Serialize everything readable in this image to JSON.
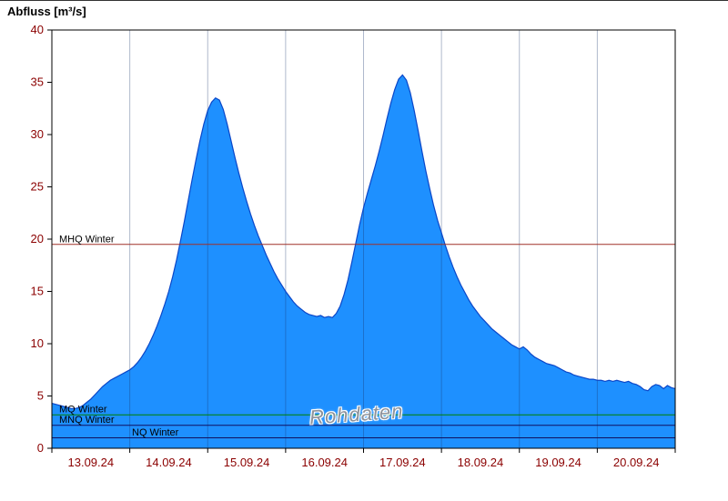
{
  "page": {
    "title": "Abfluss [m³/s]"
  },
  "watermark": "Rohdaten",
  "chart_data": {
    "type": "area",
    "title": "Abfluss [m³/s]",
    "ylabel": "Abfluss [m³/s]",
    "xlabel": "",
    "ylim": [
      0,
      40
    ],
    "ytick_step": 5,
    "xlim": [
      0,
      8
    ],
    "x_unit": "days from 13.09.24 00:00",
    "x_tick_labels": [
      "13.09.24",
      "14.09.24",
      "15.09.24",
      "16.09.24",
      "17.09.24",
      "18.09.24",
      "19.09.24",
      "20.09.24"
    ],
    "grid": "vertical-daily",
    "legend": "none",
    "reference_lines": [
      {
        "label": "MHQ Winter",
        "value": 19.5,
        "color": "#a03028"
      },
      {
        "label": "MQ Winter",
        "value": 3.2,
        "color": "#008000"
      },
      {
        "label": "MNQ Winter",
        "value": 2.2,
        "color": "#101060"
      },
      {
        "label": "NQ Winter",
        "value": 1.0,
        "color": "#101060"
      }
    ],
    "colors": {
      "fill": "#1e90ff",
      "line": "#0a46c8",
      "grid": "rgba(25,55,110,0.35)",
      "axis": "#000000",
      "tick_label": "#8b0000"
    },
    "series": [
      {
        "name": "Rohdaten",
        "points": [
          [
            0.0,
            4.3
          ],
          [
            0.05,
            4.2
          ],
          [
            0.1,
            4.1
          ],
          [
            0.15,
            4.0
          ],
          [
            0.2,
            3.9
          ],
          [
            0.25,
            3.8
          ],
          [
            0.3,
            3.8
          ],
          [
            0.35,
            3.9
          ],
          [
            0.4,
            4.1
          ],
          [
            0.45,
            4.4
          ],
          [
            0.5,
            4.7
          ],
          [
            0.55,
            5.1
          ],
          [
            0.6,
            5.5
          ],
          [
            0.65,
            5.9
          ],
          [
            0.7,
            6.2
          ],
          [
            0.75,
            6.5
          ],
          [
            0.8,
            6.7
          ],
          [
            0.85,
            6.9
          ],
          [
            0.9,
            7.1
          ],
          [
            0.95,
            7.3
          ],
          [
            1.0,
            7.5
          ],
          [
            1.05,
            7.8
          ],
          [
            1.1,
            8.2
          ],
          [
            1.15,
            8.7
          ],
          [
            1.2,
            9.3
          ],
          [
            1.25,
            10.0
          ],
          [
            1.3,
            10.8
          ],
          [
            1.35,
            11.7
          ],
          [
            1.4,
            12.7
          ],
          [
            1.45,
            13.8
          ],
          [
            1.5,
            15.0
          ],
          [
            1.55,
            16.4
          ],
          [
            1.6,
            18.0
          ],
          [
            1.65,
            19.8
          ],
          [
            1.7,
            21.7
          ],
          [
            1.75,
            23.7
          ],
          [
            1.8,
            25.7
          ],
          [
            1.85,
            27.6
          ],
          [
            1.9,
            29.4
          ],
          [
            1.95,
            31.0
          ],
          [
            2.0,
            32.3
          ],
          [
            2.05,
            33.1
          ],
          [
            2.1,
            33.5
          ],
          [
            2.15,
            33.3
          ],
          [
            2.2,
            32.4
          ],
          [
            2.25,
            31.0
          ],
          [
            2.3,
            29.4
          ],
          [
            2.35,
            27.8
          ],
          [
            2.4,
            26.3
          ],
          [
            2.45,
            24.9
          ],
          [
            2.5,
            23.6
          ],
          [
            2.55,
            22.4
          ],
          [
            2.6,
            21.3
          ],
          [
            2.65,
            20.3
          ],
          [
            2.7,
            19.4
          ],
          [
            2.75,
            18.5
          ],
          [
            2.8,
            17.7
          ],
          [
            2.85,
            16.9
          ],
          [
            2.9,
            16.2
          ],
          [
            2.95,
            15.6
          ],
          [
            3.0,
            15.0
          ],
          [
            3.05,
            14.5
          ],
          [
            3.1,
            14.0
          ],
          [
            3.15,
            13.6
          ],
          [
            3.2,
            13.3
          ],
          [
            3.25,
            13.0
          ],
          [
            3.3,
            12.8
          ],
          [
            3.35,
            12.7
          ],
          [
            3.4,
            12.6
          ],
          [
            3.45,
            12.7
          ],
          [
            3.5,
            12.5
          ],
          [
            3.55,
            12.6
          ],
          [
            3.6,
            12.5
          ],
          [
            3.65,
            12.9
          ],
          [
            3.7,
            13.6
          ],
          [
            3.75,
            14.7
          ],
          [
            3.8,
            16.1
          ],
          [
            3.85,
            17.8
          ],
          [
            3.9,
            19.6
          ],
          [
            3.95,
            21.4
          ],
          [
            4.0,
            23.0
          ],
          [
            4.05,
            24.4
          ],
          [
            4.1,
            25.7
          ],
          [
            4.15,
            27.0
          ],
          [
            4.2,
            28.4
          ],
          [
            4.25,
            29.9
          ],
          [
            4.3,
            31.5
          ],
          [
            4.35,
            33.0
          ],
          [
            4.4,
            34.3
          ],
          [
            4.45,
            35.3
          ],
          [
            4.5,
            35.7
          ],
          [
            4.55,
            35.2
          ],
          [
            4.6,
            34.0
          ],
          [
            4.65,
            32.3
          ],
          [
            4.7,
            30.4
          ],
          [
            4.75,
            28.4
          ],
          [
            4.8,
            26.5
          ],
          [
            4.85,
            24.8
          ],
          [
            4.9,
            23.2
          ],
          [
            4.95,
            21.8
          ],
          [
            5.0,
            20.6
          ],
          [
            5.05,
            19.4
          ],
          [
            5.1,
            18.3
          ],
          [
            5.15,
            17.3
          ],
          [
            5.2,
            16.4
          ],
          [
            5.25,
            15.6
          ],
          [
            5.3,
            14.9
          ],
          [
            5.35,
            14.2
          ],
          [
            5.4,
            13.6
          ],
          [
            5.45,
            13.1
          ],
          [
            5.5,
            12.6
          ],
          [
            5.55,
            12.2
          ],
          [
            5.6,
            11.8
          ],
          [
            5.65,
            11.4
          ],
          [
            5.7,
            11.1
          ],
          [
            5.75,
            10.8
          ],
          [
            5.8,
            10.5
          ],
          [
            5.85,
            10.2
          ],
          [
            5.9,
            9.9
          ],
          [
            5.95,
            9.7
          ],
          [
            6.0,
            9.5
          ],
          [
            6.05,
            9.7
          ],
          [
            6.1,
            9.4
          ],
          [
            6.15,
            9.0
          ],
          [
            6.2,
            8.7
          ],
          [
            6.25,
            8.5
          ],
          [
            6.3,
            8.3
          ],
          [
            6.35,
            8.1
          ],
          [
            6.4,
            8.0
          ],
          [
            6.45,
            7.9
          ],
          [
            6.5,
            7.7
          ],
          [
            6.55,
            7.5
          ],
          [
            6.6,
            7.3
          ],
          [
            6.65,
            7.2
          ],
          [
            6.7,
            7.0
          ],
          [
            6.75,
            6.9
          ],
          [
            6.8,
            6.8
          ],
          [
            6.85,
            6.7
          ],
          [
            6.9,
            6.6
          ],
          [
            6.95,
            6.6
          ],
          [
            7.0,
            6.5
          ],
          [
            7.05,
            6.5
          ],
          [
            7.1,
            6.4
          ],
          [
            7.15,
            6.5
          ],
          [
            7.2,
            6.4
          ],
          [
            7.25,
            6.5
          ],
          [
            7.3,
            6.4
          ],
          [
            7.35,
            6.3
          ],
          [
            7.4,
            6.4
          ],
          [
            7.45,
            6.2
          ],
          [
            7.5,
            6.1
          ],
          [
            7.55,
            5.9
          ],
          [
            7.6,
            5.6
          ],
          [
            7.65,
            5.5
          ],
          [
            7.7,
            5.9
          ],
          [
            7.75,
            6.1
          ],
          [
            7.8,
            6.0
          ],
          [
            7.85,
            5.7
          ],
          [
            7.9,
            6.0
          ],
          [
            7.95,
            5.8
          ],
          [
            8.0,
            5.7
          ]
        ]
      }
    ]
  }
}
